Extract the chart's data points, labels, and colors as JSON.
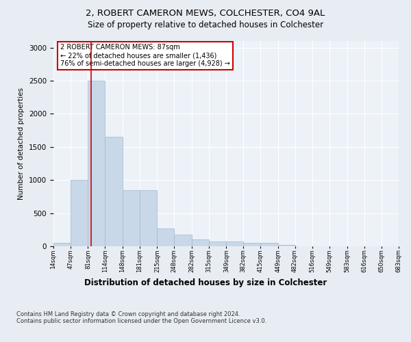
{
  "title1": "2, ROBERT CAMERON MEWS, COLCHESTER, CO4 9AL",
  "title2": "Size of property relative to detached houses in Colchester",
  "xlabel": "Distribution of detached houses by size in Colchester",
  "ylabel": "Number of detached properties",
  "footnote": "Contains HM Land Registry data © Crown copyright and database right 2024.\nContains public sector information licensed under the Open Government Licence v3.0.",
  "bin_edges": [
    14,
    47,
    81,
    114,
    148,
    181,
    215,
    248,
    282,
    315,
    349,
    382,
    415,
    449,
    482,
    516,
    549,
    583,
    616,
    650,
    683
  ],
  "bar_heights": [
    50,
    1000,
    2500,
    1650,
    850,
    850,
    270,
    175,
    100,
    75,
    75,
    50,
    50,
    25,
    5,
    0,
    0,
    0,
    0,
    0
  ],
  "bar_color": "#c8d8e8",
  "bar_edge_color": "#a0b8cc",
  "property_size": 87,
  "vline_color": "#cc0000",
  "annotation_text": "2 ROBERT CAMERON MEWS: 87sqm\n← 22% of detached houses are smaller (1,436)\n76% of semi-detached houses are larger (4,928) →",
  "annotation_box_color": "#ffffff",
  "annotation_box_edge_color": "#cc0000",
  "ylim": [
    0,
    3100
  ],
  "yticks": [
    0,
    500,
    1000,
    1500,
    2000,
    2500,
    3000
  ],
  "background_color": "#e8edf4",
  "plot_background": "#edf2f8",
  "title1_fontsize": 9.5,
  "title2_fontsize": 8.5,
  "ylabel_fontsize": 7.5,
  "xlabel_fontsize": 8.5,
  "footnote_fontsize": 6.0,
  "ytick_fontsize": 7.5,
  "xtick_fontsize": 6.0
}
